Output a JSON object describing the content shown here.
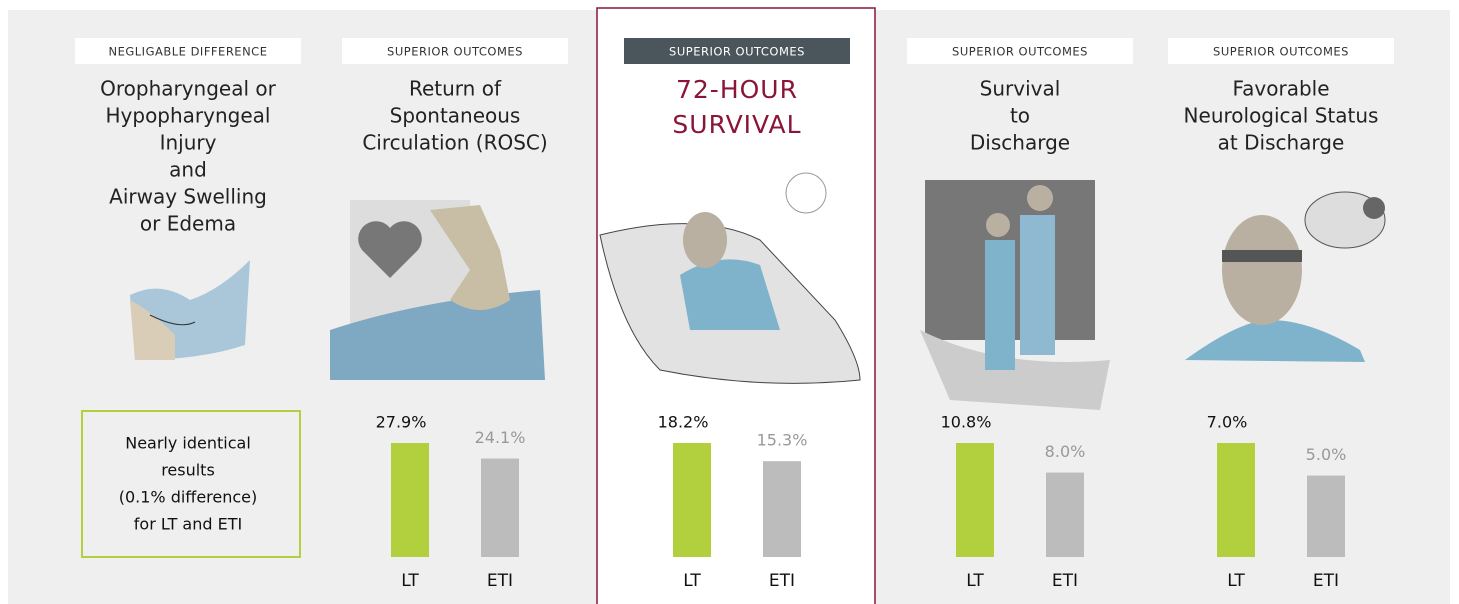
{
  "panels": [
    {
      "tag": "NEGLIGABLE DIFFERENCE",
      "title": [
        "Oropharyngeal or",
        "Hypopharyngeal",
        "Injury",
        "and",
        "Airway Swelling",
        "or Edema"
      ],
      "note": [
        "Nearly identical",
        "results",
        "(0.1% difference)",
        "for LT and ETI"
      ]
    },
    {
      "tag": "SUPERIOR OUTCOMES",
      "title": [
        "Return of",
        "Spontaneous",
        "Circulation (ROSC)"
      ]
    },
    {
      "tag": "SUPERIOR OUTCOMES",
      "title": [
        "72-HOUR",
        "SURVIVAL"
      ],
      "highlight": true
    },
    {
      "tag": "SUPERIOR OUTCOMES",
      "title": [
        "Survival",
        "to",
        "Discharge"
      ]
    },
    {
      "tag": "SUPERIOR OUTCOMES",
      "title": [
        "Favorable",
        "Neurological Status",
        "at Discharge"
      ]
    }
  ],
  "chart_data": [
    {
      "type": "bar",
      "categories": [
        "LT",
        "ETI"
      ],
      "values": [
        27.9,
        24.1
      ],
      "value_labels": [
        "27.9%",
        "24.1%"
      ],
      "colors": [
        "#b2cf3e",
        "#bcbcbd"
      ]
    },
    {
      "type": "bar",
      "categories": [
        "LT",
        "ETI"
      ],
      "values": [
        18.2,
        15.3
      ],
      "value_labels": [
        "18.2%",
        "15.3%"
      ],
      "colors": [
        "#b2cf3e",
        "#bcbcbd"
      ]
    },
    {
      "type": "bar",
      "categories": [
        "LT",
        "ETI"
      ],
      "values": [
        10.8,
        8.0
      ],
      "value_labels": [
        "10.8%",
        "8.0%"
      ],
      "colors": [
        "#b2cf3e",
        "#bcbcbd"
      ]
    },
    {
      "type": "bar",
      "categories": [
        "LT",
        "ETI"
      ],
      "values": [
        7.0,
        5.0
      ],
      "value_labels": [
        "7.0%",
        "5.0%"
      ],
      "colors": [
        "#b2cf3e",
        "#bcbcbd"
      ]
    }
  ]
}
